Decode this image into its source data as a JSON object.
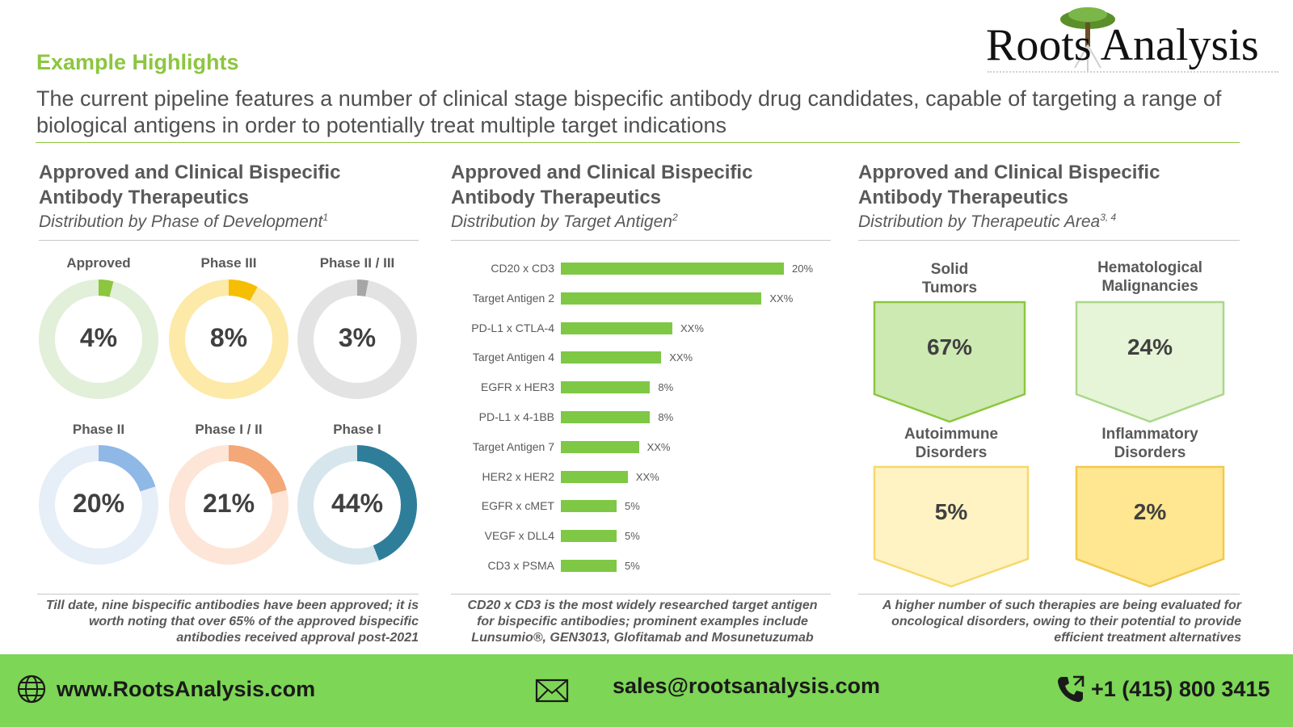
{
  "header": {
    "kicker": "Example Highlights",
    "headline": "The current pipeline features a number of clinical stage bispecific antibody drug candidates, capable of targeting a range of biological antigens in order to potentially treat multiple target indications"
  },
  "logo": {
    "text": "Roots Analysis",
    "icon": "tree-icon"
  },
  "panels": [
    {
      "title": "Approved and Clinical  Bispecific Antibody  Therapeutics",
      "subtitle": "Distribution by Phase of Development",
      "footnote": "1",
      "note": "Till date, nine bispecific antibodies have been approved; it is worth noting that over 65% of the approved bispecific antibodies received approval post-2021"
    },
    {
      "title": "Approved and Clinical  Bispecific Antibody  Therapeutics",
      "subtitle": "Distribution by Target Antigen",
      "footnote": "2",
      "note": "CD20 x CD3 is the most widely researched target antigen for bispecific antibodies; prominent examples include Lunsumio®, GEN3013, Glofitamab and Mosunetuzumab"
    },
    {
      "title": "Approved and Clinical  Bispecific Antibody  Therapeutics",
      "subtitle": "Distribution by Therapeutic Area",
      "footnote": "3, 4",
      "note": "A higher number of such therapies are being evaluated for oncological disorders,  owing to their potential to provide efficient treatment alternatives"
    }
  ],
  "chart_data": [
    {
      "type": "pie",
      "variant": "donut",
      "categories": [
        "Approved",
        "Phase III",
        "Phase II / III",
        "Phase II",
        "Phase I / II",
        "Phase I"
      ],
      "values": [
        4,
        8,
        3,
        20,
        21,
        44
      ],
      "labels": [
        "4%",
        "8%",
        "3%",
        "20%",
        "21%",
        "44%"
      ],
      "colors": [
        "#8cc63f",
        "#f6be00",
        "#a6a6a6",
        "#8fb8e6",
        "#f4a777",
        "#2e7e9a"
      ],
      "track_colors": [
        "#e2efd9",
        "#fde9a8",
        "#e3e3e3",
        "#e6eef8",
        "#fde5d7",
        "#d6e6ec"
      ]
    },
    {
      "type": "bar",
      "orientation": "horizontal",
      "categories": [
        "CD20 x CD3",
        "Target Antigen 2",
        "PD-L1 x CTLA-4",
        "Target Antigen 4",
        "EGFR x HER3",
        "PD-L1 x 4-1BB",
        "Target Antigen 7",
        "HER2 x HER2",
        "EGFR x cMET",
        "VEGF x DLL4",
        "CD3 x PSMA"
      ],
      "values": [
        20,
        18,
        10,
        9,
        8,
        8,
        7,
        6,
        5,
        5,
        5
      ],
      "labels": [
        "20%",
        "XX%",
        "XX%",
        "XX%",
        "8%",
        "8%",
        "XX%",
        "XX%",
        "5%",
        "5%",
        "5%"
      ],
      "color": "#7ec845"
    },
    {
      "type": "table",
      "categories": [
        "Solid Tumors",
        "Hematological Malignancies",
        "Autoimmune Disorders",
        "Inflammatory Disorders"
      ],
      "values": [
        67,
        24,
        5,
        2
      ],
      "labels": [
        "67%",
        "24%",
        "5%",
        "2%"
      ],
      "fills": [
        "#cdeab3",
        "#e6f4d7",
        "#fff3c4",
        "#ffe690"
      ],
      "strokes": [
        "#8cc63f",
        "#a9d88a",
        "#f7d86b",
        "#f2c94c"
      ]
    }
  ],
  "footer": {
    "website": "www.RootsAnalysis.com",
    "email": "sales@rootsanalysis.com",
    "phone": "+1 (415) 800 3415",
    "icons": [
      "globe-icon",
      "mail-icon",
      "phone-icon"
    ]
  }
}
